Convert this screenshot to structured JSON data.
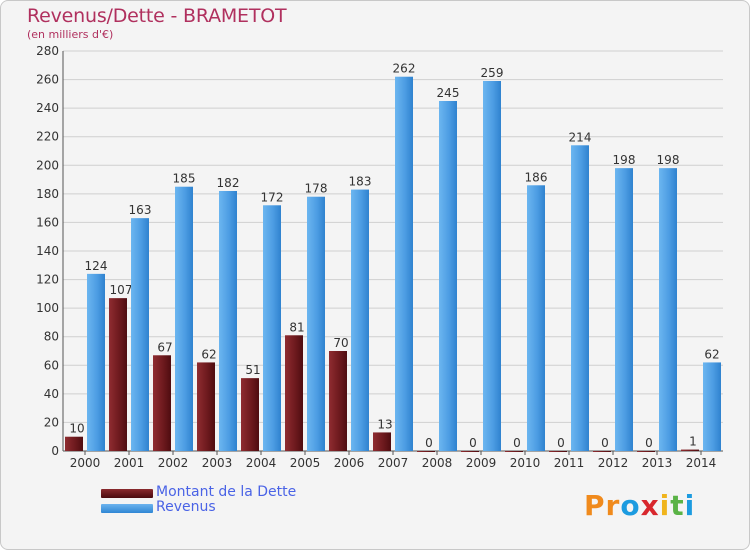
{
  "header": {
    "title": "Revenus/Dette - BRAMETOT",
    "subtitle": "(en milliers d'€)"
  },
  "colors": {
    "title": "#b0305e",
    "debt_bar": "#6e1a1e",
    "revenue_bar": "#4d9de3",
    "legend_text": "#4a63e6"
  },
  "legend": {
    "items": [
      {
        "label": "Montant de la Dette",
        "color": "#6e1a1e"
      },
      {
        "label": "Revenus",
        "color": "#4d9de3"
      }
    ]
  },
  "brand": {
    "text": "Proxiti",
    "letter_colors": [
      "#f08a1c",
      "#f08a1c",
      "#1c9be0",
      "#d8272d",
      "#f0b41c",
      "#5ab346",
      "#1c9be0"
    ]
  },
  "chart_data": {
    "type": "bar",
    "title": "Revenus/Dette - BRAMETOT",
    "subtitle": "(en milliers d'€)",
    "categories": [
      "2000",
      "2001",
      "2002",
      "2003",
      "2004",
      "2005",
      "2006",
      "2007",
      "2008",
      "2009",
      "2010",
      "2011",
      "2012",
      "2013",
      "2014"
    ],
    "series": [
      {
        "name": "Montant de la Dette",
        "values": [
          10,
          107,
          67,
          62,
          51,
          81,
          70,
          13,
          0,
          0,
          0,
          0,
          0,
          0,
          1
        ]
      },
      {
        "name": "Revenus",
        "values": [
          124,
          163,
          185,
          182,
          172,
          178,
          183,
          262,
          245,
          259,
          186,
          214,
          198,
          198,
          62
        ]
      }
    ],
    "ylim": [
      0,
      280
    ],
    "yticks": [
      0,
      20,
      40,
      60,
      80,
      100,
      120,
      140,
      160,
      180,
      200,
      220,
      240,
      260,
      280
    ],
    "grid": true,
    "legend_position": "bottom-left"
  }
}
